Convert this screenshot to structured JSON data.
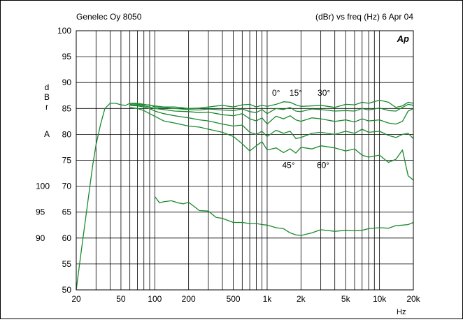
{
  "header": {
    "left": "Genelec Oy 8050",
    "right": "(dBr) vs freq (Hz) 6 Apr 04",
    "logo": "Ap"
  },
  "colors": {
    "curve": "#1a8a2e",
    "grid": "#000000"
  },
  "chart_data": {
    "type": "line",
    "title": "",
    "xlabel": "Hz",
    "ylabel_letters": [
      "d",
      "B",
      "r",
      "A"
    ],
    "x_scale": "log",
    "xlim": [
      20,
      20000
    ],
    "ylim": [
      50,
      100
    ],
    "x_ticks": [
      {
        "v": 20,
        "label": "20"
      },
      {
        "v": 50,
        "label": "50"
      },
      {
        "v": 100,
        "label": "100"
      },
      {
        "v": 200,
        "label": "200"
      },
      {
        "v": 500,
        "label": "500"
      },
      {
        "v": 1000,
        "label": "1k"
      },
      {
        "v": 2000,
        "label": "2k"
      },
      {
        "v": 5000,
        "label": "5k"
      },
      {
        "v": 10000,
        "label": "10k"
      },
      {
        "v": 20000,
        "label": "20k"
      }
    ],
    "y_ticks": [
      50,
      55,
      60,
      65,
      70,
      75,
      80,
      85,
      90,
      95,
      100
    ],
    "y_secondary_ticks": [
      {
        "at": 60,
        "label": "90"
      },
      {
        "at": 65,
        "label": "95"
      },
      {
        "at": 70,
        "label": "100"
      }
    ],
    "annotations": [
      {
        "text": "0°",
        "x": 1200,
        "y": 87.5
      },
      {
        "text": "15°",
        "x": 1800,
        "y": 87.5
      },
      {
        "text": "30°",
        "x": 3200,
        "y": 87.5
      },
      {
        "text": "45°",
        "x": 1550,
        "y": 73.5
      },
      {
        "text": "60°",
        "x": 3150,
        "y": 73.5
      }
    ],
    "series": [
      {
        "values": [
          [
            20,
            50
          ],
          [
            22,
            57
          ],
          [
            25,
            66
          ],
          [
            28,
            74
          ],
          [
            30,
            78
          ],
          [
            33,
            82
          ],
          [
            36,
            85
          ],
          [
            40,
            86
          ],
          [
            45,
            86
          ],
          [
            50,
            85.7
          ],
          [
            55,
            85.6
          ],
          [
            60,
            86
          ],
          [
            70,
            86
          ],
          [
            80,
            85.8
          ],
          [
            90,
            85.6
          ],
          [
            100,
            85.5
          ],
          [
            120,
            85.3
          ],
          [
            150,
            85.3
          ],
          [
            200,
            85
          ],
          [
            250,
            85.1
          ],
          [
            300,
            85.3
          ],
          [
            400,
            85.6
          ],
          [
            500,
            85.3
          ],
          [
            600,
            85.7
          ],
          [
            700,
            85.8
          ],
          [
            800,
            85.3
          ],
          [
            900,
            85.6
          ],
          [
            1000,
            85.4
          ],
          [
            1200,
            85.8
          ],
          [
            1400,
            86.3
          ],
          [
            1600,
            86.2
          ],
          [
            1800,
            85.7
          ],
          [
            2000,
            85.4
          ],
          [
            2500,
            85.5
          ],
          [
            3000,
            85.6
          ],
          [
            4000,
            85.2
          ],
          [
            5000,
            85.8
          ],
          [
            6000,
            85.7
          ],
          [
            7000,
            86.2
          ],
          [
            8000,
            86
          ],
          [
            10000,
            86.6
          ],
          [
            12000,
            86.2
          ],
          [
            14000,
            85.2
          ],
          [
            16000,
            85.5
          ],
          [
            18000,
            86.2
          ],
          [
            20000,
            86
          ]
        ]
      },
      {
        "values": [
          [
            60,
            86
          ],
          [
            70,
            85.8
          ],
          [
            80,
            85.7
          ],
          [
            90,
            85.7
          ],
          [
            100,
            85.3
          ],
          [
            120,
            85.2
          ],
          [
            150,
            85
          ],
          [
            200,
            84.8
          ],
          [
            250,
            84.7
          ],
          [
            300,
            84.9
          ],
          [
            400,
            84.7
          ],
          [
            500,
            84.6
          ],
          [
            600,
            84.9
          ],
          [
            700,
            84.4
          ],
          [
            800,
            84.2
          ],
          [
            900,
            84.8
          ],
          [
            1000,
            84
          ],
          [
            1200,
            85
          ],
          [
            1400,
            84.8
          ],
          [
            1600,
            85.2
          ],
          [
            1800,
            84.5
          ],
          [
            2000,
            84.4
          ],
          [
            2500,
            84.9
          ],
          [
            3000,
            84.8
          ],
          [
            4000,
            84.5
          ],
          [
            5000,
            84.6
          ],
          [
            6000,
            84.5
          ],
          [
            7000,
            85
          ],
          [
            8000,
            84.7
          ],
          [
            10000,
            85.1
          ],
          [
            12000,
            84.6
          ],
          [
            14000,
            84.5
          ],
          [
            16000,
            85.2
          ],
          [
            18000,
            85.8
          ],
          [
            20000,
            85.6
          ]
        ]
      },
      {
        "values": [
          [
            60,
            85.8
          ],
          [
            70,
            85.6
          ],
          [
            80,
            85.5
          ],
          [
            90,
            85.3
          ],
          [
            100,
            85
          ],
          [
            120,
            84.8
          ],
          [
            150,
            84.5
          ],
          [
            200,
            84.4
          ],
          [
            250,
            84.2
          ],
          [
            300,
            84.3
          ],
          [
            400,
            83.8
          ],
          [
            500,
            83.6
          ],
          [
            600,
            84
          ],
          [
            700,
            83
          ],
          [
            800,
            82.6
          ],
          [
            900,
            83.2
          ],
          [
            1000,
            82
          ],
          [
            1200,
            83.5
          ],
          [
            1400,
            83
          ],
          [
            1600,
            83.6
          ],
          [
            1800,
            82.8
          ],
          [
            2000,
            82.5
          ],
          [
            2500,
            83.2
          ],
          [
            3000,
            83
          ],
          [
            4000,
            82.5
          ],
          [
            5000,
            82.8
          ],
          [
            6000,
            82.4
          ],
          [
            7000,
            83
          ],
          [
            8000,
            82.6
          ],
          [
            10000,
            82.8
          ],
          [
            12000,
            82.2
          ],
          [
            14000,
            82
          ],
          [
            16000,
            82.5
          ],
          [
            18000,
            84.5
          ],
          [
            20000,
            85
          ]
        ]
      },
      {
        "values": [
          [
            60,
            85.6
          ],
          [
            70,
            85.5
          ],
          [
            80,
            85.3
          ],
          [
            90,
            85
          ],
          [
            100,
            84.5
          ],
          [
            120,
            84
          ],
          [
            150,
            83.6
          ],
          [
            200,
            83.2
          ],
          [
            250,
            82.8
          ],
          [
            300,
            82.6
          ],
          [
            400,
            82
          ],
          [
            500,
            81.6
          ],
          [
            600,
            81.8
          ],
          [
            700,
            80.4
          ],
          [
            800,
            80
          ],
          [
            900,
            80.6
          ],
          [
            1000,
            79.6
          ],
          [
            1200,
            80.8
          ],
          [
            1400,
            80.2
          ],
          [
            1600,
            80.6
          ],
          [
            1800,
            79.2
          ],
          [
            2000,
            79.4
          ],
          [
            2500,
            80.2
          ],
          [
            3000,
            80.4
          ],
          [
            4000,
            80
          ],
          [
            5000,
            80.6
          ],
          [
            6000,
            80.2
          ],
          [
            7000,
            81
          ],
          [
            8000,
            80.4
          ],
          [
            10000,
            80.6
          ],
          [
            12000,
            79.8
          ],
          [
            14000,
            79.4
          ],
          [
            16000,
            80
          ],
          [
            18000,
            80.2
          ],
          [
            20000,
            79.2
          ]
        ]
      },
      {
        "values": [
          [
            60,
            85.2
          ],
          [
            70,
            85
          ],
          [
            80,
            84.6
          ],
          [
            90,
            84
          ],
          [
            100,
            83.5
          ],
          [
            120,
            82.6
          ],
          [
            150,
            82.2
          ],
          [
            200,
            81.6
          ],
          [
            250,
            81.4
          ],
          [
            300,
            81
          ],
          [
            400,
            80.4
          ],
          [
            500,
            79.6
          ],
          [
            600,
            78.2
          ],
          [
            700,
            76.8
          ],
          [
            800,
            77.8
          ],
          [
            900,
            78.6
          ],
          [
            1000,
            77
          ],
          [
            1200,
            77.4
          ],
          [
            1400,
            76.5
          ],
          [
            1600,
            77.2
          ],
          [
            1800,
            76.4
          ],
          [
            2000,
            77.5
          ],
          [
            2500,
            77.2
          ],
          [
            3000,
            77.8
          ],
          [
            4000,
            77.4
          ],
          [
            5000,
            76.8
          ],
          [
            6000,
            77.2
          ],
          [
            7000,
            76
          ],
          [
            8000,
            75.6
          ],
          [
            10000,
            76
          ],
          [
            12000,
            74.6
          ],
          [
            14000,
            75.2
          ],
          [
            16000,
            77
          ],
          [
            18000,
            72
          ],
          [
            20000,
            71.2
          ]
        ]
      },
      {
        "values": [
          [
            100,
            68
          ],
          [
            110,
            66.8
          ],
          [
            120,
            67
          ],
          [
            140,
            67.2
          ],
          [
            160,
            66.8
          ],
          [
            180,
            66.6
          ],
          [
            200,
            66.9
          ],
          [
            250,
            65.3
          ],
          [
            300,
            65.2
          ],
          [
            350,
            64
          ],
          [
            400,
            63.8
          ],
          [
            500,
            63
          ],
          [
            600,
            63
          ],
          [
            700,
            62.8
          ],
          [
            800,
            62.8
          ],
          [
            900,
            62.6
          ],
          [
            1000,
            62.5
          ],
          [
            1200,
            62
          ],
          [
            1400,
            61.8
          ],
          [
            1600,
            61
          ],
          [
            1800,
            60.6
          ],
          [
            2000,
            60.5
          ],
          [
            2500,
            61
          ],
          [
            3000,
            61.6
          ],
          [
            4000,
            61.3
          ],
          [
            5000,
            61.5
          ],
          [
            6000,
            61.4
          ],
          [
            7000,
            61.5
          ],
          [
            8000,
            61.8
          ],
          [
            10000,
            62
          ],
          [
            12000,
            61.9
          ],
          [
            14000,
            62.4
          ],
          [
            16000,
            62.5
          ],
          [
            18000,
            62.6
          ],
          [
            20000,
            63
          ]
        ]
      }
    ]
  }
}
